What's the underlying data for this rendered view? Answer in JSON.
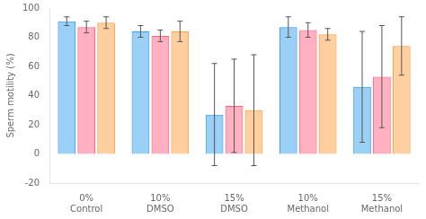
{
  "chart_data": {
    "type": "bar",
    "categories": [
      "0%\nControl",
      "10%\nDMSO",
      "15%\nDMSO",
      "10%\nMethanol",
      "15%\nMethanol"
    ],
    "series": [
      {
        "values": [
          91,
          84,
          27,
          87,
          46
        ],
        "errors": [
          3,
          4,
          35,
          7,
          38
        ]
      },
      {
        "values": [
          87,
          81,
          33,
          85,
          53
        ],
        "errors": [
          4,
          4,
          32,
          5,
          35
        ]
      },
      {
        "values": [
          90,
          84,
          30,
          82,
          74
        ],
        "errors": [
          4,
          7,
          38,
          4,
          20
        ]
      }
    ],
    "ylabel": "Sperm motility (%)",
    "ylim": [
      -20,
      100
    ],
    "yticks": [
      -20,
      0,
      20,
      40,
      60,
      80,
      100
    ],
    "grid": false
  }
}
